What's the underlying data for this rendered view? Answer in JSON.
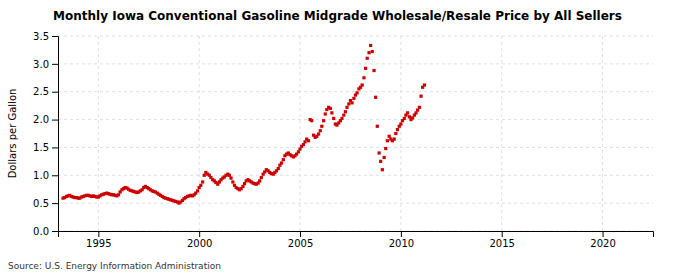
{
  "chart_data": {
    "type": "scatter",
    "title": "Monthly Iowa Conventional Gasoline Midgrade Wholesale/Resale Price by All Sellers",
    "ylabel": "Dollars per Gallon",
    "source": "Source: U.S. Energy Information Administration",
    "color": "#cc0000",
    "marker": "square",
    "grid": true,
    "xlim": [
      1993.0,
      2022.5
    ],
    "ylim": [
      0.0,
      3.5
    ],
    "xticks": [
      1995,
      2000,
      2005,
      2010,
      2015,
      2020
    ],
    "yticks": [
      {
        "value": 0.0,
        "label": "0.0"
      },
      0.5,
      {
        "value": 1.0,
        "label": "1.0"
      },
      1.5,
      {
        "value": 2.0,
        "label": "2.0"
      },
      2.5,
      {
        "value": 3.0,
        "label": "3.0"
      },
      3.5
    ],
    "x": [
      1993.25,
      1993.33,
      1993.42,
      1993.5,
      1993.58,
      1993.67,
      1993.75,
      1993.83,
      1993.92,
      1994.0,
      1994.08,
      1994.17,
      1994.25,
      1994.33,
      1994.42,
      1994.5,
      1994.58,
      1994.67,
      1994.75,
      1994.83,
      1994.92,
      1995.0,
      1995.08,
      1995.17,
      1995.25,
      1995.33,
      1995.42,
      1995.5,
      1995.58,
      1995.67,
      1995.75,
      1995.83,
      1995.92,
      1996.0,
      1996.08,
      1996.17,
      1996.25,
      1996.33,
      1996.42,
      1996.5,
      1996.58,
      1996.67,
      1996.75,
      1996.83,
      1996.92,
      1997.0,
      1997.08,
      1997.17,
      1997.25,
      1997.33,
      1997.42,
      1997.5,
      1997.58,
      1997.67,
      1997.75,
      1997.83,
      1997.92,
      1998.0,
      1998.08,
      1998.17,
      1998.25,
      1998.33,
      1998.42,
      1998.5,
      1998.58,
      1998.67,
      1998.75,
      1998.83,
      1998.92,
      1999.0,
      1999.08,
      1999.17,
      1999.25,
      1999.33,
      1999.42,
      1999.5,
      1999.58,
      1999.67,
      1999.75,
      1999.83,
      1999.92,
      2000.0,
      2000.08,
      2000.17,
      2000.25,
      2000.33,
      2000.42,
      2000.5,
      2000.58,
      2000.67,
      2000.75,
      2000.83,
      2000.92,
      2001.0,
      2001.08,
      2001.17,
      2001.25,
      2001.33,
      2001.42,
      2001.5,
      2001.58,
      2001.67,
      2001.75,
      2001.83,
      2001.92,
      2002.0,
      2002.08,
      2002.17,
      2002.25,
      2002.33,
      2002.42,
      2002.5,
      2002.58,
      2002.67,
      2002.75,
      2002.83,
      2002.92,
      2003.0,
      2003.08,
      2003.17,
      2003.25,
      2003.33,
      2003.42,
      2003.5,
      2003.58,
      2003.67,
      2003.75,
      2003.83,
      2003.92,
      2004.0,
      2004.08,
      2004.17,
      2004.25,
      2004.33,
      2004.42,
      2004.5,
      2004.58,
      2004.67,
      2004.75,
      2004.83,
      2004.92,
      2005.0,
      2005.08,
      2005.17,
      2005.25,
      2005.33,
      2005.42,
      2005.5,
      2005.58,
      2005.67,
      2005.75,
      2005.83,
      2005.92,
      2006.0,
      2006.08,
      2006.17,
      2006.25,
      2006.33,
      2006.42,
      2006.5,
      2006.58,
      2006.67,
      2006.75,
      2006.83,
      2006.92,
      2007.0,
      2007.08,
      2007.17,
      2007.25,
      2007.33,
      2007.42,
      2007.5,
      2007.58,
      2007.67,
      2007.75,
      2007.83,
      2007.92,
      2008.0,
      2008.08,
      2008.17,
      2008.25,
      2008.33,
      2008.42,
      2008.5,
      2008.58,
      2008.67,
      2008.75,
      2008.83,
      2008.92,
      2009.0,
      2009.08,
      2009.17,
      2009.25,
      2009.33,
      2009.42,
      2009.5,
      2009.58,
      2009.67,
      2009.75,
      2009.83,
      2009.92,
      2010.0,
      2010.08,
      2010.17,
      2010.25,
      2010.33,
      2010.42,
      2010.5,
      2010.58,
      2010.67,
      2010.75,
      2010.83,
      2010.92,
      2011.0,
      2011.08,
      2011.17
    ],
    "values": [
      0.59,
      0.6,
      0.62,
      0.63,
      0.64,
      0.62,
      0.61,
      0.6,
      0.6,
      0.59,
      0.59,
      0.61,
      0.62,
      0.63,
      0.64,
      0.64,
      0.63,
      0.62,
      0.63,
      0.62,
      0.61,
      0.61,
      0.63,
      0.65,
      0.66,
      0.67,
      0.68,
      0.67,
      0.66,
      0.65,
      0.65,
      0.64,
      0.63,
      0.65,
      0.7,
      0.74,
      0.76,
      0.78,
      0.77,
      0.75,
      0.73,
      0.72,
      0.71,
      0.7,
      0.69,
      0.7,
      0.72,
      0.74,
      0.78,
      0.8,
      0.78,
      0.76,
      0.74,
      0.72,
      0.71,
      0.7,
      0.68,
      0.66,
      0.64,
      0.62,
      0.6,
      0.59,
      0.58,
      0.57,
      0.56,
      0.55,
      0.54,
      0.53,
      0.52,
      0.5,
      0.52,
      0.55,
      0.58,
      0.6,
      0.62,
      0.63,
      0.64,
      0.63,
      0.65,
      0.68,
      0.72,
      0.78,
      0.82,
      0.88,
      1.0,
      1.05,
      1.02,
      1.0,
      0.96,
      0.92,
      0.9,
      0.87,
      0.84,
      0.88,
      0.92,
      0.95,
      0.97,
      1.0,
      1.02,
      1.0,
      0.95,
      0.88,
      0.82,
      0.78,
      0.76,
      0.74,
      0.76,
      0.8,
      0.85,
      0.9,
      0.92,
      0.9,
      0.88,
      0.86,
      0.85,
      0.84,
      0.86,
      0.9,
      0.96,
      1.02,
      1.06,
      1.1,
      1.08,
      1.05,
      1.03,
      1.02,
      1.05,
      1.08,
      1.12,
      1.18,
      1.22,
      1.28,
      1.35,
      1.38,
      1.4,
      1.37,
      1.35,
      1.33,
      1.35,
      1.38,
      1.42,
      1.47,
      1.52,
      1.55,
      1.6,
      1.65,
      1.62,
      2.0,
      1.98,
      1.72,
      1.68,
      1.7,
      1.74,
      1.8,
      1.88,
      1.98,
      2.1,
      2.18,
      2.22,
      2.2,
      2.12,
      2.02,
      1.92,
      1.9,
      1.94,
      1.98,
      2.02,
      2.08,
      2.14,
      2.22,
      2.28,
      2.34,
      2.3,
      2.38,
      2.44,
      2.48,
      2.55,
      2.58,
      2.62,
      2.75,
      2.92,
      3.1,
      3.2,
      3.33,
      3.22,
      2.88,
      2.4,
      1.88,
      1.4,
      1.25,
      1.1,
      1.32,
      1.48,
      1.62,
      1.7,
      1.65,
      1.62,
      1.65,
      1.75,
      1.82,
      1.88,
      1.92,
      1.98,
      2.02,
      2.08,
      2.12,
      2.05,
      2.0,
      2.03,
      2.08,
      2.12,
      2.17,
      2.22,
      2.42,
      2.58,
      2.62
    ]
  }
}
